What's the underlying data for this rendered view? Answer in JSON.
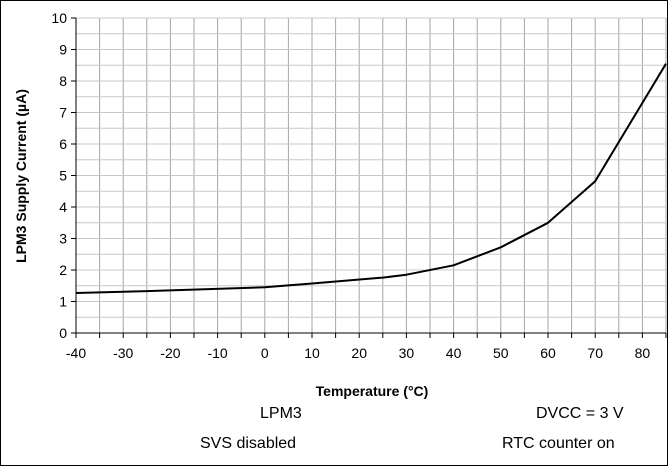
{
  "chart_data": {
    "type": "line",
    "xlabel": "Temperature (°C)",
    "ylabel": "LPM3 Supply Current (µA)",
    "xlim": [
      -40,
      85
    ],
    "ylim": [
      0,
      10
    ],
    "x_ticks": [
      -40,
      -30,
      -20,
      -10,
      0,
      10,
      20,
      30,
      40,
      50,
      60,
      70,
      80
    ],
    "y_ticks": [
      0,
      1,
      2,
      3,
      4,
      5,
      6,
      7,
      8,
      9,
      10
    ],
    "grid": {
      "vertical_minor_step": 5,
      "horizontal_step": 0.5
    },
    "series": [
      {
        "x": [
          -40,
          -25,
          0,
          10,
          25,
          30,
          40,
          50,
          60,
          70,
          85
        ],
        "y": [
          1.27,
          1.33,
          1.45,
          1.57,
          1.76,
          1.85,
          2.15,
          2.72,
          3.5,
          4.82,
          8.55
        ],
        "color": "#000000"
      }
    ],
    "annotations": {
      "left_line1": "LPM3",
      "left_line2": "SVS disabled",
      "right_line1": "DVCC = 3 V",
      "right_line2": "RTC counter on"
    }
  }
}
